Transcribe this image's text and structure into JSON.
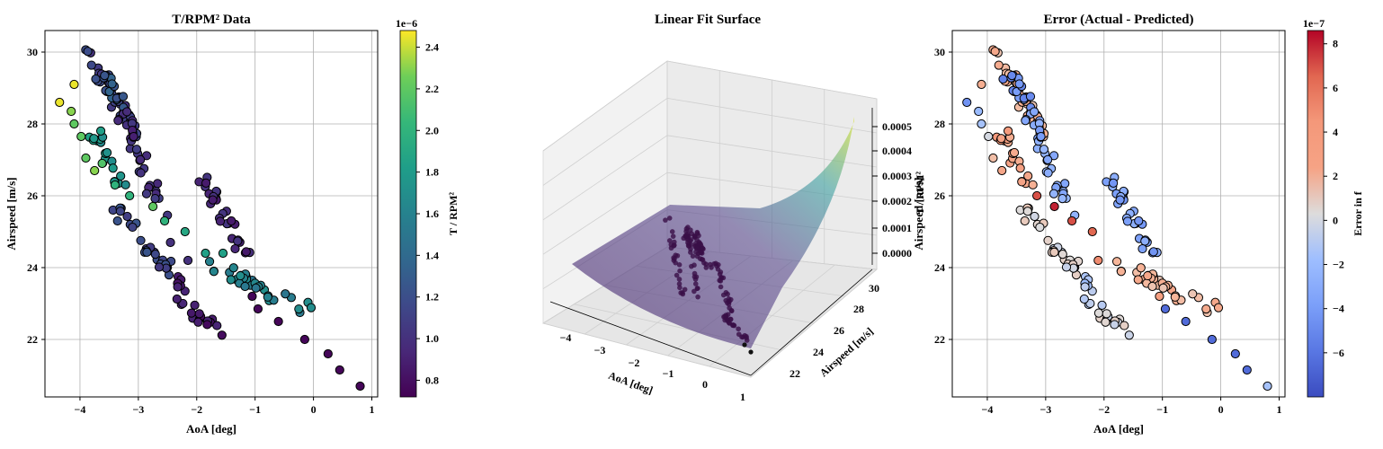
{
  "chart_data": [
    {
      "type": "scatter",
      "title": "T/RPM² Data",
      "xlabel": "AoA [deg]",
      "ylabel": "Airspeed [m/s]",
      "xlim": [
        -4.6,
        1.1
      ],
      "ylim": [
        20.4,
        30.6
      ],
      "xticks": [
        "−4",
        "−3",
        "−2",
        "−1",
        "0",
        "1"
      ],
      "yticks": [
        "22",
        "24",
        "26",
        "28",
        "30"
      ],
      "grid": true,
      "colorbar": {
        "label": "T / RPM²",
        "colormap": "viridis",
        "range": [
          0.72,
          2.48
        ],
        "scale_text": "1e−6",
        "ticks": [
          "0.8",
          "1.0",
          "1.2",
          "1.4",
          "1.6",
          "1.8",
          "2.0",
          "2.2",
          "2.4"
        ]
      },
      "points": [
        {
          "x": -4.35,
          "y": 28.6,
          "c": 2.45
        },
        {
          "x": -4.1,
          "y": 29.1,
          "c": 2.45
        },
        {
          "x": -4.15,
          "y": 28.35,
          "c": 2.3
        },
        {
          "x": -4.1,
          "y": 28.0,
          "c": 2.2
        },
        {
          "x": -3.98,
          "y": 27.65,
          "c": 2.2
        },
        {
          "x": -3.9,
          "y": 27.05,
          "c": 2.2
        },
        {
          "x": -3.75,
          "y": 26.7,
          "c": 2.3
        },
        {
          "x": -3.62,
          "y": 26.9,
          "c": 2.15
        },
        {
          "x": -3.4,
          "y": 26.3,
          "c": 2.0
        },
        {
          "x": -3.15,
          "y": 26.0,
          "c": 2.0
        },
        {
          "x": -2.75,
          "y": 25.7,
          "c": 2.2
        },
        {
          "x": -2.55,
          "y": 25.3,
          "c": 2.0
        },
        {
          "x": -2.2,
          "y": 25.0,
          "c": 1.9
        },
        {
          "x": -1.85,
          "y": 24.4,
          "c": 1.85
        },
        {
          "x": -1.55,
          "y": 24.4,
          "c": 1.85
        },
        {
          "x": -1.05,
          "y": 23.2,
          "c": 0.75
        },
        {
          "x": -0.95,
          "y": 22.85,
          "c": 0.75
        },
        {
          "x": -0.6,
          "y": 22.5,
          "c": 0.75
        },
        {
          "x": -0.15,
          "y": 22.0,
          "c": 0.75
        },
        {
          "x": 0.25,
          "y": 21.6,
          "c": 0.75
        },
        {
          "x": 0.45,
          "y": 21.15,
          "c": 0.75
        },
        {
          "x": 0.8,
          "y": 20.7,
          "c": 0.75
        },
        {
          "x": -2.15,
          "y": 24.2,
          "c": 1.0
        },
        {
          "x": -2.45,
          "y": 24.7,
          "c": 1.0
        }
      ],
      "clusters": [
        {
          "from": [
            -3.85,
            30.0
          ],
          "to": [
            -3.0,
            27.6
          ],
          "c": 1.1,
          "n": 36
        },
        {
          "from": [
            -3.7,
            29.5
          ],
          "to": [
            -3.3,
            28.6
          ],
          "c": 1.3,
          "n": 14
        },
        {
          "from": [
            -3.25,
            28.3
          ],
          "to": [
            -2.6,
            25.6
          ],
          "c": 1.0,
          "n": 30
        },
        {
          "from": [
            -3.4,
            25.6
          ],
          "to": [
            -2.4,
            23.8
          ],
          "c": 1.15,
          "n": 28
        },
        {
          "from": [
            -2.45,
            23.8
          ],
          "to": [
            -2.05,
            22.8
          ],
          "c": 0.9,
          "n": 10
        },
        {
          "from": [
            -2.1,
            22.7
          ],
          "to": [
            -1.6,
            22.2
          ],
          "c": 0.85,
          "n": 12
        },
        {
          "from": [
            -1.95,
            26.5
          ],
          "to": [
            -1.1,
            24.3
          ],
          "c": 0.95,
          "n": 28
        },
        {
          "from": [
            -3.75,
            27.7
          ],
          "to": [
            -3.25,
            26.2
          ],
          "c": 1.75,
          "n": 20
        },
        {
          "from": [
            -1.8,
            24.1
          ],
          "to": [
            -0.05,
            22.8
          ],
          "c": 1.6,
          "n": 34
        }
      ]
    },
    {
      "type": "surface",
      "title": "Linear Fit Surface",
      "xlabel": "AoA [deg]",
      "ylabel": "Airspeed [m/s]",
      "zlabel": "T / RPM²",
      "xticks": [
        "−4",
        "−3",
        "−2",
        "−1",
        "0",
        "1"
      ],
      "yticks": [
        "22",
        "24",
        "26",
        "28",
        "30"
      ],
      "zticks": [
        "0.0000",
        "0.0001",
        "0.0002",
        "0.0003",
        "0.0004",
        "0.0005"
      ]
    },
    {
      "type": "scatter",
      "title": "Error (Actual - Predicted)",
      "xlabel": "AoA [deg]",
      "ylabel": "Airspeed [m/s]",
      "xlim": [
        -4.6,
        1.1
      ],
      "ylim": [
        20.4,
        30.6
      ],
      "xticks": [
        "−4",
        "−3",
        "−2",
        "−1",
        "0",
        "1"
      ],
      "yticks": [
        "22",
        "24",
        "26",
        "28",
        "30"
      ],
      "grid": true,
      "colorbar": {
        "label": "Error in f",
        "colormap": "coolwarm",
        "range": [
          -8.0,
          8.6
        ],
        "scale_text": "1e−7",
        "ticks": [
          "−6",
          "−4",
          "−2",
          "0",
          "2",
          "4",
          "6",
          "8"
        ]
      },
      "points": [
        {
          "x": -4.35,
          "y": 28.6,
          "c": -4.5
        },
        {
          "x": -4.1,
          "y": 29.1,
          "c": 3.0
        },
        {
          "x": -4.15,
          "y": 28.35,
          "c": -2.0
        },
        {
          "x": -4.1,
          "y": 28.0,
          "c": -1.5
        },
        {
          "x": -3.98,
          "y": 27.65,
          "c": 0.0
        },
        {
          "x": -3.9,
          "y": 27.05,
          "c": 2.0
        },
        {
          "x": -3.75,
          "y": 26.7,
          "c": 3.5
        },
        {
          "x": -3.15,
          "y": 26.0,
          "c": 7.0
        },
        {
          "x": -2.85,
          "y": 25.7,
          "c": 8.0
        },
        {
          "x": -2.55,
          "y": 25.3,
          "c": 7.0
        },
        {
          "x": -2.2,
          "y": 25.0,
          "c": 6.5
        },
        {
          "x": -2.1,
          "y": 24.2,
          "c": 5.0
        },
        {
          "x": -1.05,
          "y": 23.2,
          "c": 4.0
        },
        {
          "x": -0.95,
          "y": 22.85,
          "c": -6.5
        },
        {
          "x": -0.6,
          "y": 22.5,
          "c": -6.5
        },
        {
          "x": -0.15,
          "y": 22.0,
          "c": -6.5
        },
        {
          "x": 0.25,
          "y": 21.6,
          "c": -6.5
        },
        {
          "x": 0.45,
          "y": 21.15,
          "c": -6.5
        },
        {
          "x": 0.8,
          "y": 20.7,
          "c": -1.5
        }
      ],
      "clusters": [
        {
          "from": [
            -3.85,
            30.0
          ],
          "to": [
            -3.0,
            27.6
          ],
          "c": 2.5,
          "n": 36
        },
        {
          "from": [
            -3.7,
            29.5
          ],
          "to": [
            -3.3,
            28.6
          ],
          "c": -4.5,
          "n": 14
        },
        {
          "from": [
            -3.25,
            28.3
          ],
          "to": [
            -2.6,
            25.6
          ],
          "c": -3.0,
          "n": 30
        },
        {
          "from": [
            -3.4,
            25.6
          ],
          "to": [
            -2.4,
            23.8
          ],
          "c": 0.5,
          "n": 28
        },
        {
          "from": [
            -2.45,
            23.8
          ],
          "to": [
            -2.05,
            22.8
          ],
          "c": -1.0,
          "n": 10
        },
        {
          "from": [
            -2.1,
            22.7
          ],
          "to": [
            -1.6,
            22.2
          ],
          "c": 0.3,
          "n": 12
        },
        {
          "from": [
            -1.95,
            26.5
          ],
          "to": [
            -1.1,
            24.3
          ],
          "c": -3.5,
          "n": 28
        },
        {
          "from": [
            -3.75,
            27.7
          ],
          "to": [
            -3.25,
            26.2
          ],
          "c": 3.5,
          "n": 20
        },
        {
          "from": [
            -1.8,
            24.1
          ],
          "to": [
            -0.05,
            22.8
          ],
          "c": 2.5,
          "n": 34
        }
      ]
    }
  ]
}
